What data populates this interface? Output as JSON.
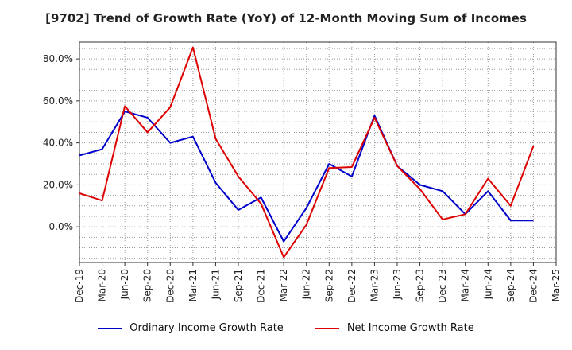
{
  "chart_data": {
    "type": "line",
    "title": "[9702]  Trend of Growth Rate (YoY) of 12-Month Moving Sum of Incomes",
    "xlabel": "",
    "ylabel": "",
    "ylim": [
      -17,
      88
    ],
    "grid": true,
    "legend_position": "bottom",
    "x": [
      "Dec-19",
      "Mar-20",
      "Jun-20",
      "Sep-20",
      "Dec-20",
      "Mar-21",
      "Jun-21",
      "Sep-21",
      "Dec-21",
      "Mar-22",
      "Jun-22",
      "Sep-22",
      "Dec-22",
      "Mar-23",
      "Jun-23",
      "Sep-23",
      "Dec-23",
      "Mar-24",
      "Jun-24",
      "Sep-24",
      "Dec-24",
      "Mar-25"
    ],
    "y_ticks": [
      {
        "value": 0,
        "label": "0.0%"
      },
      {
        "value": 20,
        "label": "20.0%"
      },
      {
        "value": 40,
        "label": "40.0%"
      },
      {
        "value": 60,
        "label": "60.0%"
      },
      {
        "value": 80,
        "label": "80.0%"
      }
    ],
    "series": [
      {
        "name": "Ordinary Income Growth Rate",
        "color": "#0000cc",
        "values": [
          34,
          37,
          55,
          52,
          40,
          43,
          21,
          8,
          14,
          -7,
          9,
          30,
          24,
          53,
          29,
          20,
          17,
          6,
          17,
          3,
          3,
          null
        ]
      },
      {
        "name": "Net Income Growth Rate",
        "color": "#dd0000",
        "values": [
          16,
          12.5,
          57.5,
          45,
          57,
          85.5,
          42,
          24,
          11,
          -14.5,
          1,
          28,
          28.5,
          52,
          29,
          18,
          3.5,
          6,
          23,
          10,
          38.5,
          null
        ]
      }
    ]
  }
}
